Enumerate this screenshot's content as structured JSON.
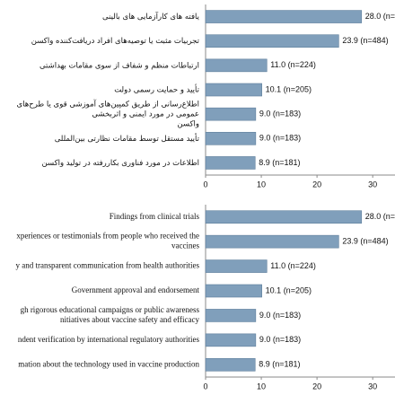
{
  "chart_data": [
    {
      "type": "bar",
      "orientation": "horizontal",
      "categories": [
        [
          "یافته های کارآزمایی های بالینی"
        ],
        [
          "تجربیات مثبت یا توصیه‌های افراد دریافت‌کننده واکسن"
        ],
        [
          "ارتباطات منظم و شفاف از سوی مقامات بهداشتی"
        ],
        [
          "تأیید و حمایت رسمی دولت"
        ],
        [
          "اطلاع‌رسانی از طریق کمپین‌های آموزشی قوی یا طرح‌های",
          "عمومی در مورد ایمنی و اثربخشی",
          "واکسن"
        ],
        [
          "تأیید مستقل توسط مقامات نظارتی بین‌المللی"
        ],
        [
          "اطلاعات در مورد فناوری بکاررفته در تولید واکسن"
        ]
      ],
      "values": [
        28.0,
        23.9,
        11.0,
        10.1,
        9.0,
        9.0,
        8.9
      ],
      "value_labels": [
        "28.0 (n=",
        "23.9 (n=484)",
        "11.0 (n=224)",
        "10.1 (n=205)",
        "9.0 (n=183)",
        "9.0 (n=183)",
        "8.9 (n=181)"
      ],
      "color": "#809fbb",
      "xlim": [
        0,
        34
      ],
      "xticks": [
        0,
        10,
        20,
        30
      ]
    },
    {
      "type": "bar",
      "orientation": "horizontal",
      "categories": [
        [
          "Findings from clinical trials"
        ],
        [
          "xperiences or testimonials from people who received the",
          "vaccines"
        ],
        [
          "y and transparent communication from health authorities"
        ],
        [
          "Government approval and endorsement"
        ],
        [
          "gh rigorous educational campaigns or public awareness",
          "nitiatives about vaccine safety and efficacy"
        ],
        [
          "ndent verification by international regulatory authorities"
        ],
        [
          "mation about the technology used in vaccine production"
        ]
      ],
      "values": [
        28.0,
        23.9,
        11.0,
        10.1,
        9.0,
        9.0,
        8.9
      ],
      "value_labels": [
        "28.0 (n=",
        "23.9 (n=484)",
        "11.0 (n=224)",
        "10.1 (n=205)",
        "9.0 (n=183)",
        "9.0 (n=183)",
        "8.9 (n=181)"
      ],
      "color": "#809fbb",
      "xlim": [
        0,
        34
      ],
      "xticks": [
        0,
        10,
        20,
        30
      ]
    }
  ]
}
